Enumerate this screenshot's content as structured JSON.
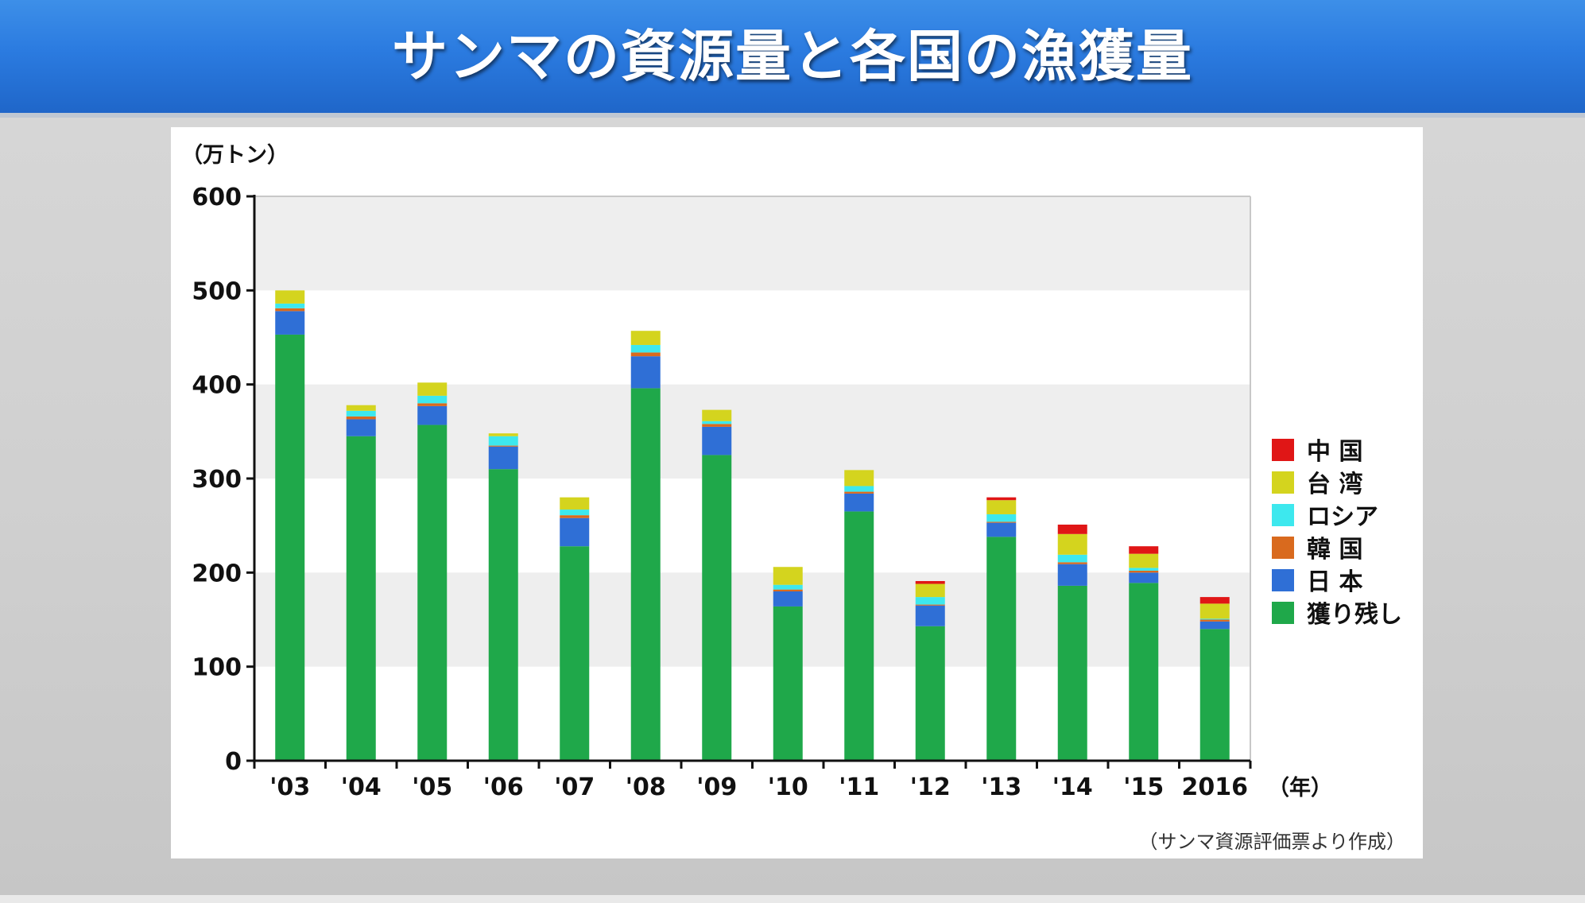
{
  "header": {
    "title": "サンマの資源量と各国の漁獲量"
  },
  "chart_data": {
    "type": "bar",
    "stacked": true,
    "ylabel": "（万トン）",
    "xlabel": "（年）",
    "ylim": [
      0,
      600
    ],
    "yticks": [
      0,
      100,
      200,
      300,
      400,
      500,
      600
    ],
    "grid": "alternating horizontal bands",
    "legend_position": "right",
    "categories": [
      "'03",
      "'04",
      "'05",
      "'06",
      "'07",
      "'08",
      "'09",
      "'10",
      "'11",
      "'12",
      "'13",
      "'14",
      "'15",
      "2016"
    ],
    "series": [
      {
        "name": "獲り残し",
        "color": "#1fa84a",
        "values": [
          453,
          345,
          357,
          310,
          228,
          396,
          325,
          164,
          265,
          143,
          238,
          186,
          189,
          140
        ]
      },
      {
        "name": "日本",
        "color": "#2f6fd6",
        "values": [
          25,
          18,
          20,
          24,
          30,
          34,
          30,
          16,
          19,
          22,
          15,
          23,
          11,
          8
        ]
      },
      {
        "name": "韓国",
        "color": "#d96a1e",
        "values": [
          3,
          3,
          3,
          1,
          3,
          4,
          3,
          2,
          2,
          1,
          1,
          2,
          2,
          2
        ]
      },
      {
        "name": "ロシア",
        "color": "#3de8ee",
        "values": [
          5,
          6,
          8,
          10,
          6,
          8,
          3,
          5,
          6,
          8,
          8,
          8,
          3,
          1
        ]
      },
      {
        "name": "台湾",
        "color": "#d4d41e",
        "values": [
          14,
          6,
          14,
          3,
          13,
          15,
          12,
          19,
          17,
          14,
          15,
          22,
          15,
          16
        ]
      },
      {
        "name": "中国",
        "color": "#e01616",
        "values": [
          0,
          0,
          0,
          0,
          0,
          0,
          0,
          0,
          0,
          3,
          3,
          10,
          8,
          7
        ]
      }
    ],
    "legend_order": [
      "中国",
      "台湾",
      "ロシア",
      "韓国",
      "日本",
      "獲り残し"
    ],
    "legend_labels": {
      "中国": "中 国",
      "台湾": "台 湾",
      "ロシア": "ロシア",
      "韓国": "韓 国",
      "日本": "日 本",
      "獲り残し": "獲り残し"
    },
    "source_note": "（サンマ資源評価票より作成）"
  }
}
